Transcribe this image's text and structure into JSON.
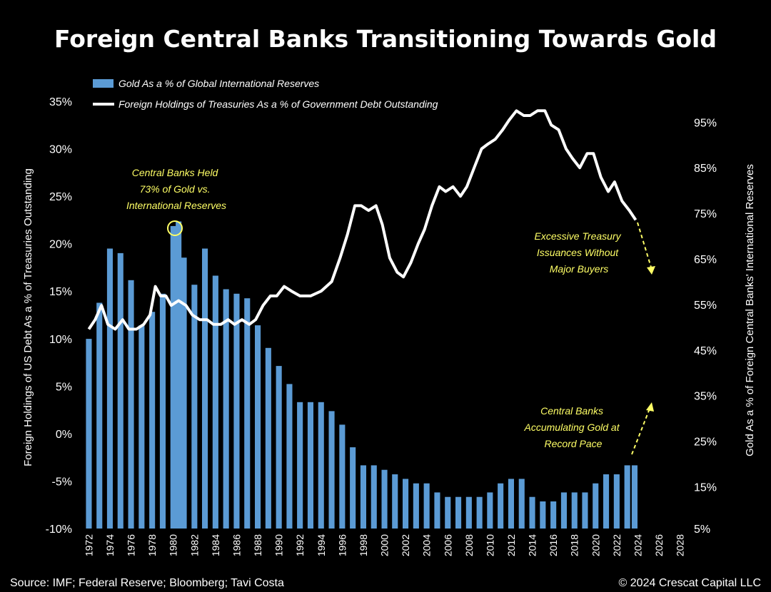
{
  "title": "Foreign Central Banks Transitioning Towards Gold",
  "source": "Source: IMF; Federal Reserve; Bloomberg; Tavi Costa",
  "copyright": "© 2024 Crescat Capital LLC",
  "colors": {
    "background": "#000000",
    "bars": "#5b9bd5",
    "line": "#ffffff",
    "annotation": "#ffff66"
  },
  "annotations": [
    {
      "lines": [
        "Central Banks Held",
        "73% of Gold vs.",
        "International Reserves"
      ]
    },
    {
      "lines": [
        "Excessive Treasury",
        "Issuances Without",
        "Major Buyers"
      ]
    },
    {
      "lines": [
        "Central Banks",
        "Accumulating Gold at",
        "Record Pace"
      ]
    }
  ],
  "chart_data": {
    "type": "bar+line",
    "x_ticks": [
      "1972",
      "1974",
      "1976",
      "1978",
      "1980",
      "1982",
      "1984",
      "1986",
      "1988",
      "1990",
      "1992",
      "1994",
      "1996",
      "1998",
      "2000",
      "2002",
      "2004",
      "2006",
      "2008",
      "2010",
      "2012",
      "2014",
      "2016",
      "2018",
      "2020",
      "2022",
      "2024",
      "2026",
      "2028"
    ],
    "xlim": [
      1971.7,
      2028.5
    ],
    "y_left": {
      "label": "Foreign Holdings of US Debt As a % of Treasuries Outstanding",
      "ticks": [
        "35%",
        "30%",
        "25%",
        "20%",
        "15%",
        "10%",
        "5%",
        "0%",
        "-5%",
        "-10%"
      ],
      "ylim": [
        -10,
        35
      ]
    },
    "y_right": {
      "label": "Gold As a % of Foreign Central Banks' International Reserves",
      "ticks": [
        "95%",
        "85%",
        "75%",
        "65%",
        "55%",
        "45%",
        "35%",
        "25%",
        "15%",
        "5%"
      ],
      "ylim": [
        5,
        95
      ],
      "tick_positions_left_units": [
        32.8,
        28.0,
        23.2,
        18.4,
        13.6,
        8.8,
        4.0,
        -0.8,
        -5.6,
        -10.0
      ]
    },
    "series": [
      {
        "name": "Gold As a % of Global International Reserves",
        "type": "bar",
        "axis": "right",
        "x": [
          1972,
          1973,
          1974,
          1975,
          1976,
          1977,
          1978,
          1979,
          1980,
          1980.5,
          1981,
          1982,
          1983,
          1984,
          1985,
          1986,
          1987,
          1988,
          1989,
          1990,
          1991,
          1992,
          1993,
          1994,
          1995,
          1996,
          1997,
          1998,
          1999,
          2000,
          2001,
          2002,
          2003,
          2004,
          2005,
          2006,
          2007,
          2008,
          2009,
          2010,
          2011,
          2012,
          2013,
          2014,
          2015,
          2016,
          2017,
          2018,
          2019,
          2020,
          2021,
          2022,
          2023,
          2023.7
        ],
        "values": [
          47,
          55,
          67,
          66,
          60,
          50,
          53,
          57,
          72,
          73,
          65,
          59,
          67,
          61,
          58,
          57,
          56,
          50,
          45,
          41,
          37,
          33,
          33,
          33,
          31,
          28,
          23,
          19,
          19,
          18,
          17,
          16,
          15,
          15,
          13,
          12,
          12,
          12,
          12,
          13,
          15,
          16,
          16,
          12,
          11,
          11,
          13,
          13,
          13,
          15,
          17,
          17,
          19,
          19
        ]
      },
      {
        "name": "Foreign Holdings of Treasuries As a % of Government Debt Outstanding",
        "type": "line",
        "axis": "left",
        "x": [
          1972,
          1972.6,
          1973.2,
          1973.8,
          1974.5,
          1975.2,
          1975.8,
          1976.5,
          1977.2,
          1977.8,
          1978.3,
          1978.8,
          1979.3,
          1979.8,
          1980.5,
          1981.2,
          1981.8,
          1982.5,
          1983.2,
          1983.8,
          1984.5,
          1985.2,
          1985.8,
          1986.5,
          1987.2,
          1987.8,
          1988.5,
          1989.2,
          1989.8,
          1990.5,
          1991.2,
          1992,
          1993,
          1994,
          1995,
          1995.8,
          1996.5,
          1997.2,
          1997.8,
          1998.5,
          1999.2,
          1999.8,
          2000.5,
          2001.2,
          2001.8,
          2002.5,
          2003.2,
          2003.8,
          2004.5,
          2005.2,
          2005.8,
          2006.5,
          2007.2,
          2007.8,
          2008.5,
          2009.2,
          2009.8,
          2010.5,
          2011.2,
          2011.8,
          2012.5,
          2013.2,
          2013.8,
          2014.5,
          2015.2,
          2015.8,
          2016.5,
          2017.2,
          2017.8,
          2018.5,
          2019.2,
          2019.8,
          2020.5,
          2021.2,
          2021.8,
          2022.5,
          2023.2,
          2023.8
        ],
        "values": [
          11,
          12,
          13.5,
          11.5,
          11,
          12,
          11,
          11,
          11.5,
          12.5,
          15.5,
          14.5,
          14.5,
          13.5,
          14,
          13.5,
          12.5,
          12,
          12,
          11.5,
          11.5,
          12,
          11.5,
          12,
          11.5,
          12,
          13.5,
          14.5,
          14.5,
          15.5,
          15,
          14.5,
          14.5,
          15,
          16,
          18.5,
          21,
          24,
          24,
          23.5,
          24,
          22,
          18.5,
          17,
          16.5,
          18,
          20,
          21.5,
          24,
          26,
          25.5,
          26,
          25,
          26,
          28,
          30,
          30.5,
          31,
          32,
          33,
          34,
          33.5,
          33.5,
          34,
          34,
          32.5,
          32,
          30,
          29,
          28,
          29.5,
          29.5,
          27,
          25.5,
          26.5,
          24.5,
          23.5,
          22.5
        ]
      }
    ],
    "legend_position": "top-left",
    "grid": false
  }
}
